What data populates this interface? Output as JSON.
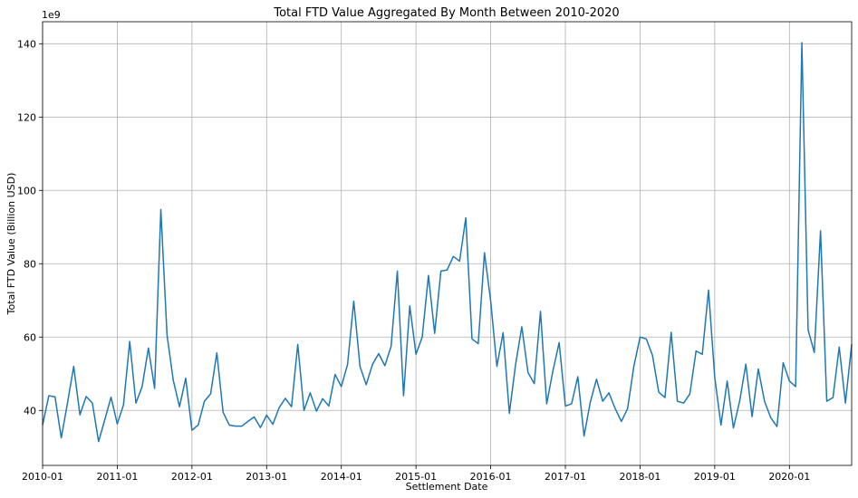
{
  "chart_data": {
    "type": "line",
    "title": "Total FTD Value Aggregated By Month Between 2010-2020",
    "xlabel": "Settlement Date",
    "ylabel": "Total FTD Value (Billion USD)",
    "y_offset_label": "1e9",
    "ylim": [
      25,
      146
    ],
    "yticks": [
      40,
      60,
      80,
      100,
      120,
      140
    ],
    "xticks": [
      "2010-01",
      "2011-01",
      "2012-01",
      "2013-01",
      "2014-01",
      "2015-01",
      "2016-01",
      "2017-01",
      "2018-01",
      "2019-01",
      "2020-01"
    ],
    "x_start": "2010-01",
    "grid": true,
    "series": [
      {
        "color": "#1f77b4",
        "values": [
          36,
          44,
          43.7,
          32.5,
          42,
          52,
          38.8,
          43.8,
          42,
          31.5,
          37.5,
          43.6,
          36.3,
          41.5,
          58.8,
          42,
          46.5,
          57,
          46,
          94.8,
          60.5,
          48.2,
          41,
          48.8,
          34.6,
          36,
          42.5,
          44.5,
          55.7,
          39.5,
          36,
          35.7,
          35.7,
          37,
          38.2,
          35.3,
          38.7,
          36.2,
          40.7,
          43.3,
          41,
          58,
          40,
          44.8,
          39.8,
          43.2,
          41.2,
          49.8,
          46.5,
          52.5,
          69.8,
          52,
          47,
          52.5,
          55.5,
          52.2,
          57.5,
          78,
          44,
          68.5,
          55.3,
          60,
          76.8,
          61,
          78,
          78.3,
          82,
          80.7,
          92.5,
          59.5,
          58.2,
          83,
          69.8,
          52,
          61.2,
          39.2,
          52.5,
          62.8,
          50.3,
          47.3,
          67,
          41.8,
          50.8,
          58.5,
          41.2,
          41.8,
          49.2,
          33,
          42.2,
          48.5,
          42.5,
          44.8,
          40.5,
          37,
          40.5,
          52,
          60,
          59.5,
          55,
          45,
          43.5,
          61.3,
          42.5,
          42,
          44.5,
          56.2,
          55.3,
          72.8,
          49,
          36,
          48,
          35.2,
          42.5,
          52.6,
          38.3,
          51.3,
          42.5,
          38,
          35.6,
          53,
          48,
          46.5,
          140.3,
          62,
          55.8,
          89,
          42.5,
          43.5,
          57.3,
          42,
          58
        ]
      }
    ]
  }
}
